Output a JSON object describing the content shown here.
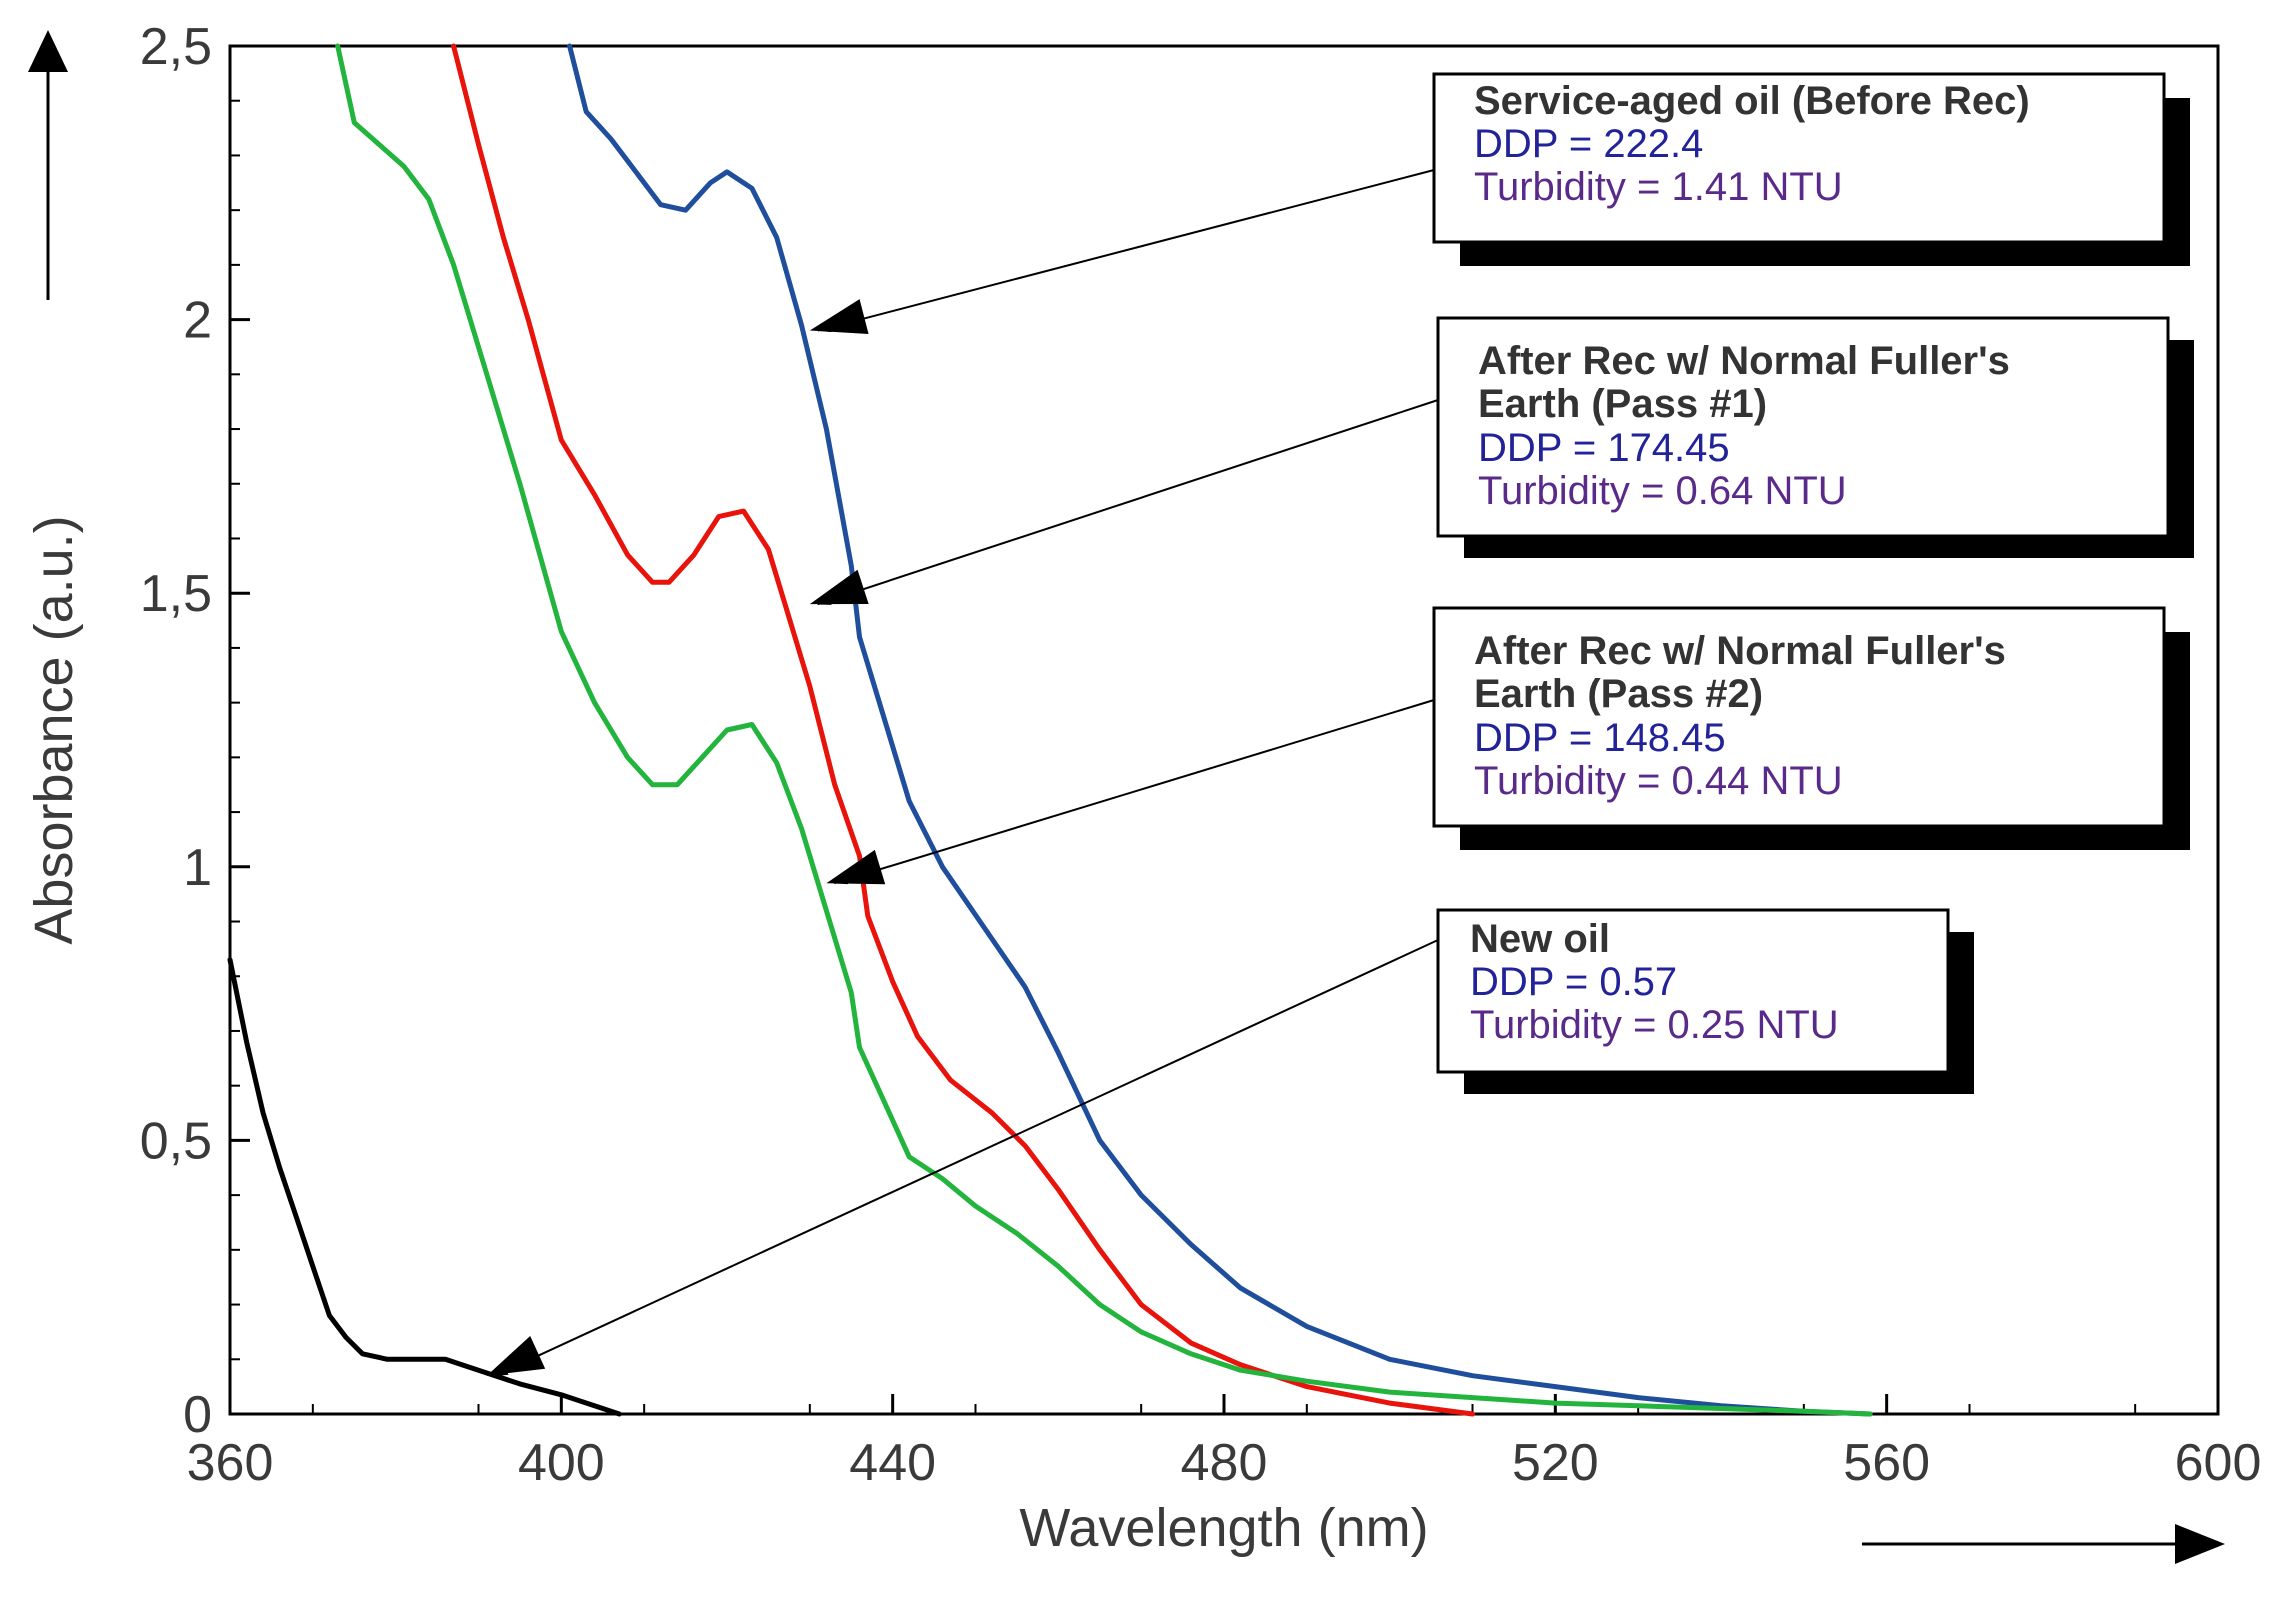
{
  "chart_data": {
    "type": "line",
    "xlabel": "Wavelength (nm)",
    "ylabel": "Absorbance (a.u.)",
    "xlim": [
      360,
      600
    ],
    "ylim": [
      0,
      2.5
    ],
    "x_ticks": [
      "360",
      "400",
      "440",
      "480",
      "520",
      "560",
      "600"
    ],
    "y_ticks": [
      "0",
      "0,5",
      "1",
      "1,5",
      "2",
      "2,5"
    ],
    "grid": false,
    "series": [
      {
        "name": "Service-aged oil (Before Rec)",
        "color": "#1f4e9c",
        "x": [
          401,
          403,
          406,
          409,
          412,
          415,
          418,
          420,
          423,
          426,
          429,
          432,
          435,
          436,
          439,
          442,
          446,
          451,
          456,
          460,
          465,
          470,
          476,
          482,
          490,
          500,
          510,
          520,
          530,
          540,
          550,
          558
        ],
        "y": [
          2.5,
          2.38,
          2.33,
          2.27,
          2.21,
          2.2,
          2.25,
          2.27,
          2.24,
          2.15,
          1.99,
          1.8,
          1.55,
          1.42,
          1.27,
          1.12,
          1.0,
          0.89,
          0.78,
          0.66,
          0.5,
          0.4,
          0.31,
          0.23,
          0.16,
          0.1,
          0.07,
          0.05,
          0.03,
          0.015,
          0.005,
          0
        ]
      },
      {
        "name": "After Rec w/ Normal Fuller's Earth (Pass #1)",
        "color": "#e8140c",
        "x": [
          387,
          390,
          393,
          396,
          400,
          404,
          408,
          411,
          413,
          416,
          419,
          422,
          425,
          427,
          430,
          433,
          436,
          437,
          440,
          443,
          447,
          452,
          456,
          460,
          465,
          470,
          476,
          482,
          490,
          500,
          510
        ],
        "y": [
          2.5,
          2.32,
          2.15,
          2.0,
          1.78,
          1.68,
          1.57,
          1.52,
          1.52,
          1.57,
          1.64,
          1.65,
          1.58,
          1.48,
          1.33,
          1.15,
          1.02,
          0.91,
          0.79,
          0.69,
          0.61,
          0.55,
          0.49,
          0.41,
          0.3,
          0.2,
          0.13,
          0.09,
          0.05,
          0.02,
          0
        ]
      },
      {
        "name": "After Rec w/ Normal Fuller's Earth (Pass #2)",
        "color": "#22b43c",
        "x": [
          373,
          375,
          378,
          381,
          384,
          387,
          391,
          395,
          400,
          404,
          408,
          411,
          414,
          417,
          420,
          423,
          426,
          429,
          432,
          435,
          436,
          439,
          442,
          446,
          450,
          455,
          460,
          465,
          470,
          476,
          482,
          490,
          500,
          510,
          520,
          530,
          540,
          550,
          558
        ],
        "y": [
          2.5,
          2.36,
          2.32,
          2.28,
          2.22,
          2.1,
          1.9,
          1.7,
          1.43,
          1.3,
          1.2,
          1.15,
          1.15,
          1.2,
          1.25,
          1.26,
          1.19,
          1.07,
          0.92,
          0.77,
          0.67,
          0.57,
          0.47,
          0.43,
          0.38,
          0.33,
          0.27,
          0.2,
          0.15,
          0.11,
          0.08,
          0.06,
          0.04,
          0.03,
          0.02,
          0.015,
          0.01,
          0.005,
          0
        ]
      },
      {
        "name": "New oil",
        "color": "#000000",
        "x": [
          360,
          362,
          364,
          366,
          368,
          370,
          372,
          374,
          376,
          379,
          383,
          386,
          388,
          391,
          395,
          400,
          404,
          407
        ],
        "y": [
          0.83,
          0.68,
          0.55,
          0.45,
          0.36,
          0.27,
          0.18,
          0.14,
          0.11,
          0.1,
          0.1,
          0.1,
          0.09,
          0.075,
          0.055,
          0.035,
          0.015,
          0
        ]
      }
    ],
    "annotations": [
      {
        "title": "Service-aged oil (Before Rec)",
        "ddp": "DDP = 222.4",
        "turbidity": "Turbidity = 1.41 NTU",
        "points_to": [
          430,
          1.98
        ]
      },
      {
        "title": "After Rec w/ Normal Fuller's Earth (Pass #1)",
        "title_lines": [
          "After Rec w/ Normal Fuller's",
          "Earth (Pass #1)"
        ],
        "ddp": "DDP = 174.45",
        "turbidity": "Turbidity = 0.64 NTU",
        "points_to": [
          430,
          1.48
        ]
      },
      {
        "title": "After Rec w/ Normal Fuller's Earth (Pass #2)",
        "title_lines": [
          "After Rec w/ Normal Fuller's",
          "Earth (Pass #2)"
        ],
        "ddp": "DDP = 148.45",
        "turbidity": "Turbidity = 0.44 NTU",
        "points_to": [
          432,
          0.97
        ]
      },
      {
        "title": "New oil",
        "ddp": "DDP = 0.57",
        "turbidity": "Turbidity = 0.25 NTU",
        "points_to": [
          391,
          0.07
        ]
      }
    ]
  }
}
